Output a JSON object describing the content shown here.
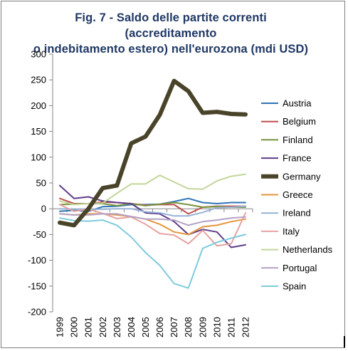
{
  "chart_data": {
    "type": "line",
    "title": "Fig. 7 - Saldo delle partite correnti (accreditamento o indebitamento estero) nell'eurozona (mdi USD)",
    "title_lines": [
      "Fig. 7 - Saldo delle partite correnti (accreditamento",
      "o indebitamento estero) nell'eurozona (mdi USD)"
    ],
    "xlabel": "",
    "ylabel": "",
    "ylim": [
      -200,
      300
    ],
    "yticks": [
      300,
      250,
      200,
      150,
      100,
      50,
      0,
      -50,
      -100,
      -150,
      -200
    ],
    "grid": false,
    "legend_position": "right",
    "categories": [
      "1999",
      "2000",
      "2001",
      "2002",
      "2003",
      "2004",
      "2005",
      "2006",
      "2007",
      "2008",
      "2009",
      "2010",
      "2011",
      "2012"
    ],
    "series": [
      {
        "name": "Austria",
        "color": "#2e75b6",
        "width": 2,
        "values": [
          -5,
          -3,
          -5,
          4,
          5,
          8,
          8,
          9,
          14,
          20,
          12,
          10,
          12,
          12
        ]
      },
      {
        "name": "Belgium",
        "color": "#c0504d",
        "width": 2,
        "values": [
          20,
          10,
          10,
          13,
          12,
          10,
          7,
          8,
          8,
          -10,
          3,
          5,
          5,
          5
        ]
      },
      {
        "name": "Finland",
        "color": "#77933c",
        "width": 2,
        "values": [
          8,
          9,
          10,
          10,
          6,
          10,
          6,
          9,
          12,
          8,
          3,
          4,
          3,
          3
        ]
      },
      {
        "name": "France",
        "color": "#5f3d8a",
        "width": 2,
        "values": [
          45,
          20,
          23,
          15,
          12,
          10,
          -8,
          -10,
          -25,
          -50,
          -40,
          -45,
          -75,
          -70
        ]
      },
      {
        "name": "Germany",
        "color": "#494429",
        "width": 6,
        "values": [
          -27,
          -32,
          0,
          40,
          45,
          127,
          140,
          182,
          248,
          228,
          186,
          188,
          184,
          183
        ]
      },
      {
        "name": "Greece",
        "color": "#e3963b",
        "width": 2,
        "values": [
          -10,
          -12,
          -10,
          -10,
          -12,
          -15,
          -20,
          -30,
          -45,
          -50,
          -35,
          -32,
          -25,
          -20
        ]
      },
      {
        "name": "Ireland",
        "color": "#95b3d7",
        "width": 2,
        "values": [
          0,
          -1,
          -1,
          -1,
          0,
          0,
          -6,
          -8,
          -14,
          -14,
          -7,
          2,
          3,
          5
        ]
      },
      {
        "name": "Italy",
        "color": "#e6a2a0",
        "width": 2,
        "values": [
          8,
          -5,
          -1,
          -9,
          -19,
          -16,
          -30,
          -48,
          -51,
          -68,
          -42,
          -72,
          -68,
          -8
        ]
      },
      {
        "name": "Netherlands",
        "color": "#c3d69b",
        "width": 2,
        "values": [
          15,
          8,
          10,
          11,
          30,
          48,
          48,
          65,
          52,
          39,
          38,
          54,
          63,
          67
        ]
      },
      {
        "name": "Portugal",
        "color": "#b3a2c7",
        "width": 2,
        "values": [
          -10,
          -12,
          -12,
          -10,
          -10,
          -15,
          -20,
          -20,
          -22,
          -32,
          -25,
          -22,
          -18,
          -16
        ]
      },
      {
        "name": "Spain",
        "color": "#7fcbdc",
        "width": 2,
        "values": [
          -18,
          -23,
          -24,
          -22,
          -32,
          -55,
          -85,
          -110,
          -145,
          -154,
          -77,
          -65,
          -57,
          -50
        ]
      }
    ]
  }
}
